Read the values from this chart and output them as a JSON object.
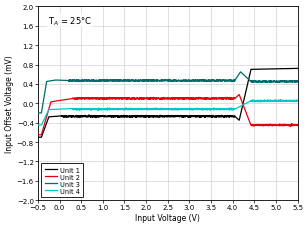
{
  "title": "T_A = 25°C",
  "xlabel": "Input Voltage (V)",
  "ylabel": "Input Offset Voltage (mV)",
  "xlim": [
    -0.5,
    5.5
  ],
  "ylim": [
    -2,
    2
  ],
  "xticks": [
    -0.5,
    0,
    0.5,
    1,
    1.5,
    2,
    2.5,
    3,
    3.5,
    4,
    4.5,
    5,
    5.5
  ],
  "yticks": [
    -2,
    -1.6,
    -1.2,
    -0.8,
    -0.4,
    0,
    0.4,
    0.8,
    1.2,
    1.6,
    2
  ],
  "colors": {
    "unit1": "#000000",
    "unit2": "#e8000e",
    "unit3": "#006b6b",
    "unit4": "#00c8c8"
  },
  "legend_labels": [
    "Unit 1",
    "Unit 2",
    "Unit 3",
    "Unit 4"
  ],
  "bg_color": "#ffffff",
  "grid_color": "#c8c8c8"
}
